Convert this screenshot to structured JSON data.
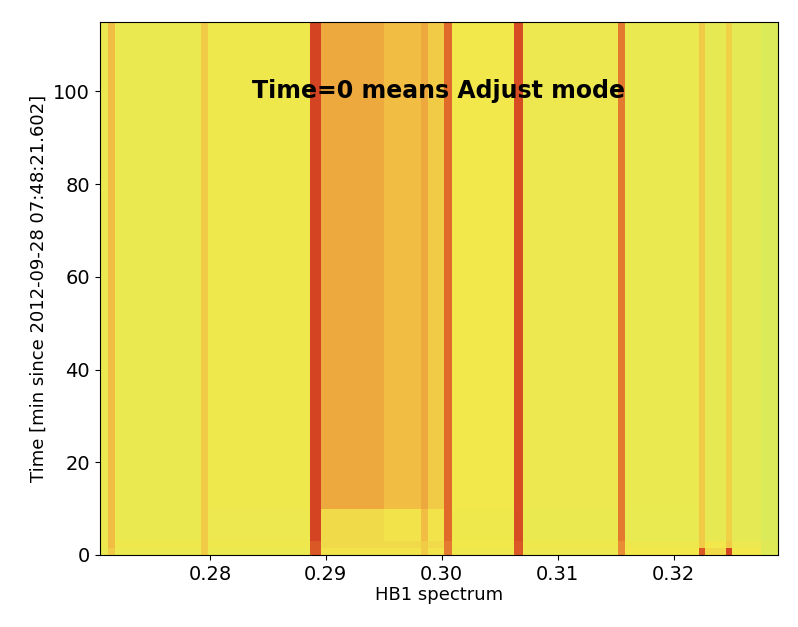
{
  "chart_data": {
    "type": "heatmap",
    "annotation": "Time=0 means Adjust mode",
    "xlabel": "HB1 spectrum",
    "ylabel": "Time [min since 2012-09-28 07:48:21.602]",
    "x_edges": [
      0.2705,
      0.2712,
      0.2718,
      0.2792,
      0.2798,
      0.2886,
      0.2896,
      0.295,
      0.2982,
      0.2988,
      0.3002,
      0.3009,
      0.3062,
      0.307,
      0.3152,
      0.3158,
      0.3222,
      0.3227,
      0.3245,
      0.325,
      0.3275,
      0.329
    ],
    "y_edges": [
      0,
      1.5,
      3,
      10,
      115
    ],
    "cells": [
      [
        0.35,
        0.5,
        0.35,
        0.5,
        0.35,
        0.85,
        0.42,
        0.42,
        0.5,
        0.42,
        0.75,
        0.38,
        0.85,
        0.36,
        0.7,
        0.4,
        0.85,
        0.45,
        0.9,
        0.4,
        0.25
      ],
      [
        0.38,
        0.55,
        0.38,
        0.5,
        0.38,
        0.85,
        0.45,
        0.45,
        0.5,
        0.45,
        0.75,
        0.4,
        0.85,
        0.38,
        0.7,
        0.38,
        0.5,
        0.4,
        0.5,
        0.36,
        0.25
      ],
      [
        0.35,
        0.55,
        0.35,
        0.5,
        0.36,
        0.9,
        0.45,
        0.42,
        0.55,
        0.42,
        0.8,
        0.38,
        0.88,
        0.35,
        0.75,
        0.33,
        0.5,
        0.32,
        0.48,
        0.3,
        0.22
      ],
      [
        0.35,
        0.55,
        0.35,
        0.5,
        0.38,
        0.9,
        0.62,
        0.55,
        0.62,
        0.5,
        0.8,
        0.4,
        0.88,
        0.36,
        0.75,
        0.34,
        0.5,
        0.32,
        0.48,
        0.3,
        0.22
      ]
    ],
    "color_range": [
      0,
      1
    ],
    "xlim": [
      0.2705,
      0.329
    ],
    "ylim": [
      0,
      115
    ],
    "xticks": [
      0.28,
      0.29,
      {
        "value": 0.3,
        "label": "0.30"
      },
      0.31,
      0.32
    ],
    "yticks": [
      0,
      20,
      40,
      60,
      80,
      100
    ],
    "tick_labels": true
  }
}
